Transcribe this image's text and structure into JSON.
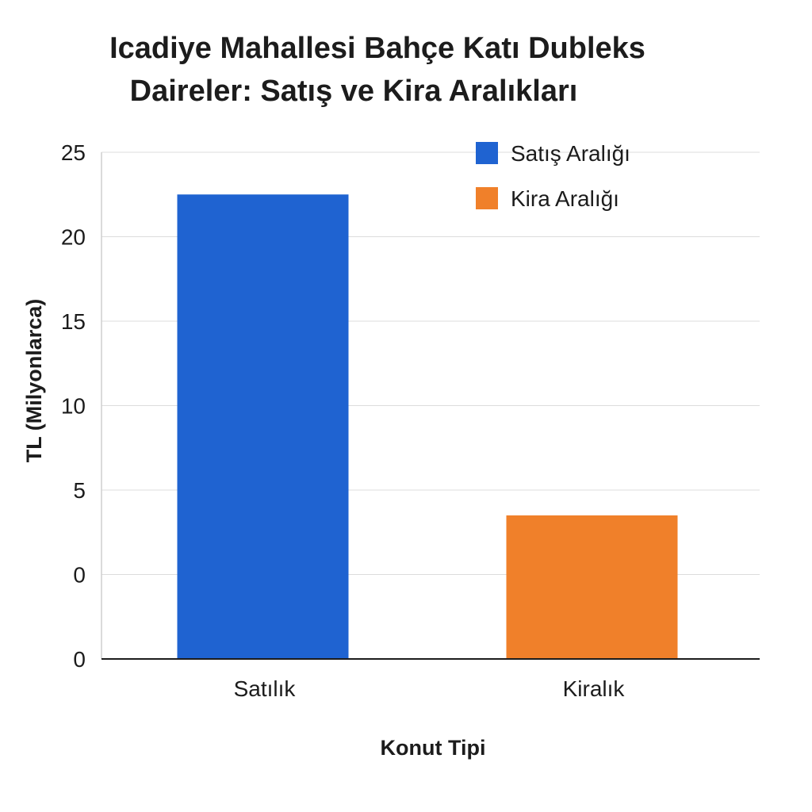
{
  "chart_data": {
    "type": "bar",
    "title": [
      "Icadiye Mahallesi Bahçe Katı Dubleks",
      "Daireler: Satış ve Kira Aralıkları"
    ],
    "xlabel": "Konut Tipi",
    "ylabel": "TL (Milyonlarca)",
    "categories": [
      "Satılık",
      "Kiralık"
    ],
    "values": [
      22.5,
      3.5
    ],
    "colors": [
      "#1f63d1",
      "#f0802a"
    ],
    "y_tick_labels": [
      "0",
      "0",
      "5",
      "10",
      "15",
      "20",
      "25"
    ],
    "ylim": [
      -5,
      25
    ],
    "grid": true,
    "legend": {
      "position": "top-right",
      "entries": [
        {
          "label": "Satış Aralığı",
          "color": "#1f63d1"
        },
        {
          "label": "Kira Aralığı",
          "color": "#f0802a"
        }
      ]
    }
  }
}
